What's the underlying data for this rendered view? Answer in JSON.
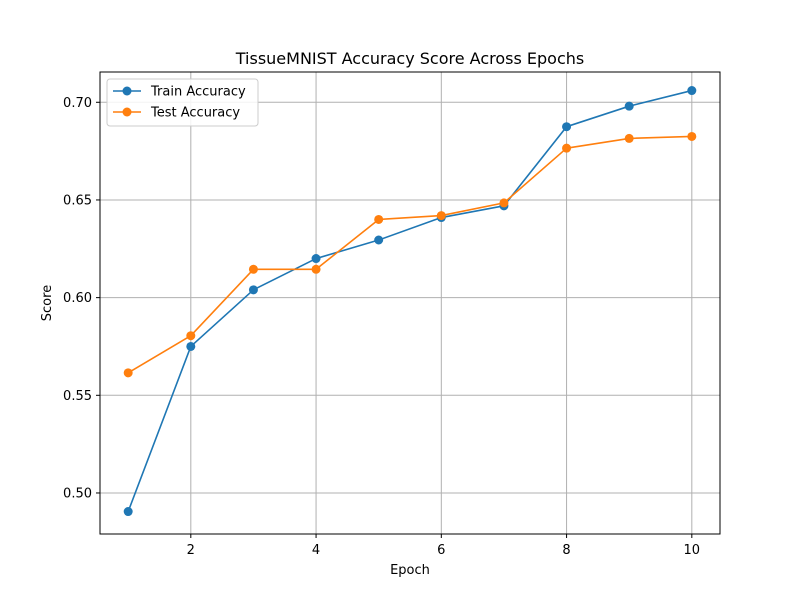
{
  "chart_data": {
    "type": "line",
    "title": "TissueMNIST Accuracy Score Across Epochs",
    "xlabel": "Epoch",
    "ylabel": "Score",
    "xlim": [
      0.55,
      10.45
    ],
    "ylim": [
      0.479,
      0.7155
    ],
    "x_ticks": [
      2,
      4,
      6,
      8,
      10
    ],
    "y_ticks": [
      0.5,
      0.55,
      0.6,
      0.65,
      0.7
    ],
    "y_tick_labels": [
      "0.50",
      "0.55",
      "0.60",
      "0.65",
      "0.70"
    ],
    "grid": true,
    "legend_position": "top-left",
    "x": [
      1,
      2,
      3,
      4,
      5,
      6,
      7,
      8,
      9,
      10
    ],
    "series": [
      {
        "name": "Train Accuracy",
        "color": "#1f77b4",
        "values": [
          0.4905,
          0.575,
          0.604,
          0.62,
          0.6295,
          0.641,
          0.647,
          0.6875,
          0.698,
          0.706
        ]
      },
      {
        "name": "Test Accuracy",
        "color": "#ff7f0e",
        "values": [
          0.5615,
          0.5805,
          0.6145,
          0.6145,
          0.64,
          0.642,
          0.6485,
          0.6765,
          0.6815,
          0.6825
        ]
      }
    ]
  }
}
